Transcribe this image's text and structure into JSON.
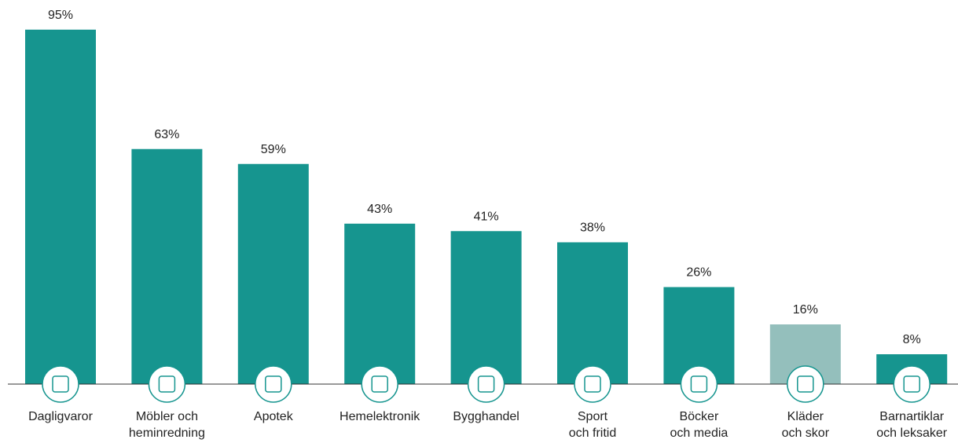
{
  "chart_data": {
    "type": "bar",
    "categories": [
      "Dagligvaror",
      "Möbler och\nheminredning",
      "Apotek",
      "Hemelektronik",
      "Bygghandel",
      "Sport\noch fritid",
      "Böcker\noch media",
      "Kläder\noch skor",
      "Barnartiklar\noch leksaker"
    ],
    "values": [
      95,
      63,
      59,
      43,
      41,
      38,
      26,
      16,
      8
    ],
    "value_labels": [
      "95%",
      "63%",
      "59%",
      "43%",
      "41%",
      "38%",
      "26%",
      "16%",
      "8%"
    ],
    "colors": [
      "#16958f",
      "#16958f",
      "#16958f",
      "#16958f",
      "#16958f",
      "#16958f",
      "#16958f",
      "#94bfbc",
      "#16958f"
    ],
    "ylim": [
      0,
      100
    ]
  }
}
